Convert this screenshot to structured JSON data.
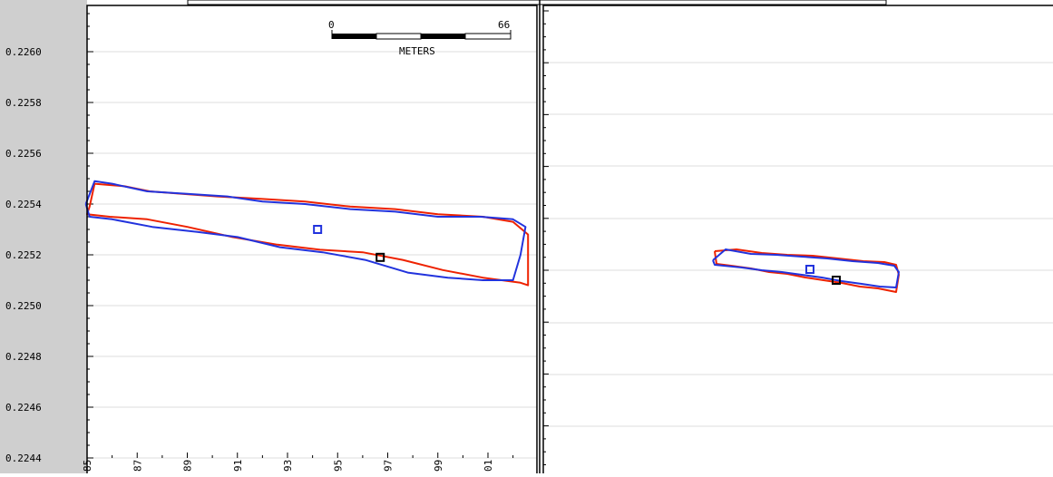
{
  "colors": {
    "gutter": "#cfcfcf",
    "grid": "#dcdcdc",
    "frame": "#000000",
    "trace_red": "#ee2200",
    "trace_blue": "#2233dd",
    "marker_blue": "#2233dd",
    "marker_black": "#000000"
  },
  "scale_bar": {
    "start_label": "0",
    "end_label": "66",
    "unit_label": "METERS"
  },
  "chart_data": [
    {
      "type": "scatter",
      "title": "",
      "xlabel": "",
      "ylabel": "",
      "grid": true,
      "ylim": [
        0.2244,
        0.22615
      ],
      "xlim": [
        85,
        102.8
      ],
      "y_ticks": [
        "0.2260",
        "0.2258",
        "0.2256",
        "0.2254",
        "0.2252",
        "0.2250",
        "0.2248",
        "0.2246",
        "0.2244"
      ],
      "y_tick_values": [
        0.226,
        0.2258,
        0.2256,
        0.2254,
        0.2252,
        0.225,
        0.2248,
        0.2246,
        0.2244
      ],
      "x_ticks": [
        "85",
        "87",
        "89",
        "91",
        "93",
        "95",
        "97",
        "99",
        "01"
      ],
      "x_tick_values": [
        85,
        87,
        89,
        91,
        93,
        95,
        97,
        99,
        101
      ],
      "series": [
        {
          "color": "red",
          "x": [
            85.1,
            85.3,
            86.5,
            87.5,
            88.8,
            90.2,
            92.0,
            93.7,
            95.5,
            97.3,
            99.0,
            100.8,
            102.0,
            102.6,
            102.6,
            102.3,
            100.8,
            99.2,
            97.6,
            96.0,
            94.3,
            92.6,
            90.8,
            89.0,
            87.4,
            85.9,
            85.0,
            85.1
          ],
          "y": [
            0.22539,
            0.22548,
            0.22547,
            0.22545,
            0.22544,
            0.22543,
            0.22542,
            0.22541,
            0.22539,
            0.22538,
            0.22536,
            0.22535,
            0.22533,
            0.22528,
            0.22508,
            0.22509,
            0.22511,
            0.22514,
            0.22518,
            0.22521,
            0.22522,
            0.22524,
            0.22527,
            0.22531,
            0.22534,
            0.22535,
            0.22536,
            0.22539
          ]
        },
        {
          "color": "blue",
          "x": [
            84.95,
            85.3,
            86.0,
            87.4,
            89.0,
            90.6,
            92.0,
            93.7,
            95.5,
            97.3,
            99.0,
            100.7,
            102.0,
            102.5,
            102.3,
            102.0,
            100.8,
            99.4,
            97.8,
            96.1,
            94.4,
            92.7,
            91.0,
            89.4,
            87.6,
            86.0,
            85.1,
            84.95
          ],
          "y": [
            0.2254,
            0.22549,
            0.22548,
            0.22545,
            0.22544,
            0.22543,
            0.22541,
            0.2254,
            0.22538,
            0.22537,
            0.22535,
            0.22535,
            0.22534,
            0.22531,
            0.2252,
            0.2251,
            0.2251,
            0.22511,
            0.22513,
            0.22518,
            0.22521,
            0.22523,
            0.22527,
            0.22529,
            0.22531,
            0.22534,
            0.22535,
            0.2254
          ]
        }
      ],
      "markers": [
        {
          "color": "blue",
          "x": 94.2,
          "y": 0.2253
        },
        {
          "color": "black",
          "x": 96.7,
          "y": 0.22519
        }
      ]
    },
    {
      "type": "scatter",
      "title": "",
      "xlabel": "",
      "ylabel": "",
      "grid": true,
      "y_ticks": [],
      "x_ticks": [],
      "series": [
        {
          "color": "red",
          "x": [
            788,
            812,
            840,
            868,
            896,
            924,
            952,
            975,
            988,
            991,
            988,
            968,
            948,
            928,
            908,
            888,
            868,
            848,
            828,
            806,
            790,
            788
          ],
          "y": [
            277,
            275,
            279,
            281,
            282,
            285,
            288,
            289,
            292,
            303,
            322,
            318,
            316,
            312,
            309,
            306,
            302,
            300,
            296,
            293,
            291,
            277
          ]
        },
        {
          "color": "blue",
          "x": [
            786,
            800,
            828,
            856,
            884,
            912,
            940,
            968,
            986,
            991,
            988,
            970,
            950,
            928,
            906,
            884,
            862,
            840,
            818,
            798,
            788,
            786
          ],
          "y": [
            287,
            275,
            280,
            281,
            283,
            285,
            288,
            290,
            293,
            300,
            317,
            316,
            313,
            310,
            306,
            303,
            300,
            298,
            295,
            293,
            292,
            287
          ]
        }
      ],
      "markers": [
        {
          "color": "blue",
          "x": 893,
          "y": 297
        },
        {
          "color": "black",
          "x": 922,
          "y": 309
        }
      ]
    }
  ]
}
